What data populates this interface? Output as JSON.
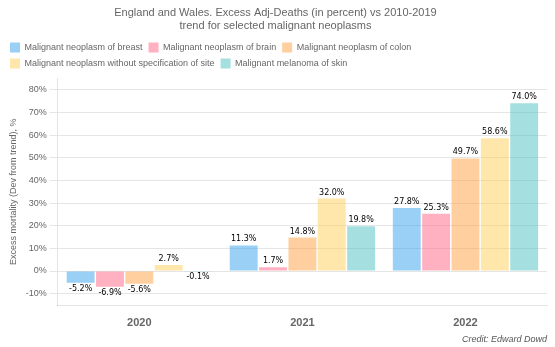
{
  "chart_data": {
    "type": "bar",
    "title": "England and Wales. Excess Adj-Deaths (in percent) vs 2010-2019\ntrend for selected malignant neoplasms",
    "y_label": "Excess mortality (Dev from trend), %",
    "annotations": [
      "Credit: Edward Dowd"
    ],
    "categories": [
      "2020",
      "2021",
      "2022"
    ],
    "series": [
      {
        "name": "Malignant neoplasm of breast",
        "values": [
          -5.2,
          11.3,
          27.8
        ],
        "value_labels": [
          "-5.2%",
          "11.3%",
          "27.8%"
        ]
      },
      {
        "name": "Malignant neoplasm of brain",
        "values": [
          -6.9,
          1.7,
          25.3
        ],
        "value_labels": [
          "-6.9%",
          "1.7%",
          "25.3%"
        ]
      },
      {
        "name": "Malignant neoplasm of colon",
        "values": [
          -5.6,
          14.8,
          49.7
        ],
        "value_labels": [
          "-5.6%",
          "14.8%",
          "49.7%"
        ]
      },
      {
        "name": "Malignant neoplasm without specification of site",
        "values": [
          2.7,
          32.0,
          58.6
        ],
        "value_labels": [
          "2.7%",
          "32.0%",
          "58.6%"
        ]
      },
      {
        "name": "Malignant melanoma of skin",
        "values": [
          -0.1,
          19.8,
          74.0
        ],
        "value_labels": [
          "-0.1%",
          "19.8%",
          "74.0%"
        ]
      }
    ],
    "ylim": [
      -15,
      85
    ],
    "yticks": [
      {
        "value": -10,
        "label": "-10%"
      },
      {
        "value": 0,
        "label": "0%"
      },
      {
        "value": 10,
        "label": "10%"
      },
      {
        "value": 20,
        "label": "20%"
      },
      {
        "value": 30,
        "label": "30%"
      },
      {
        "value": 40,
        "label": "40%"
      },
      {
        "value": 50,
        "label": "50%"
      },
      {
        "value": 60,
        "label": "60%"
      },
      {
        "value": 70,
        "label": "70%"
      },
      {
        "value": 80,
        "label": "80%"
      }
    ],
    "grid": true,
    "legend": "upper left",
    "data_labels": true
  }
}
